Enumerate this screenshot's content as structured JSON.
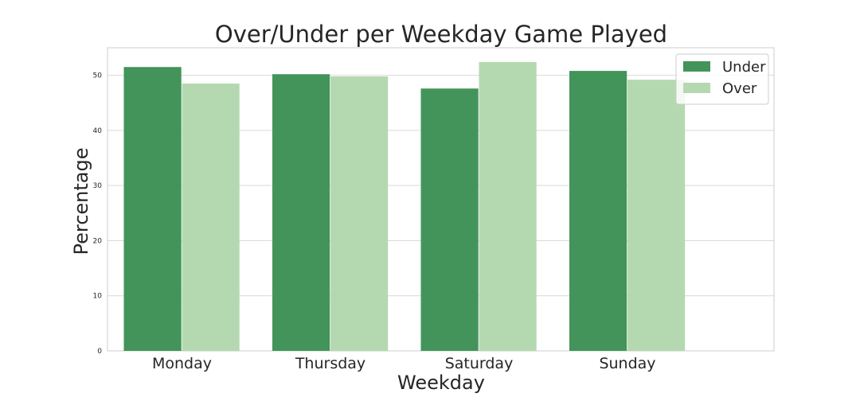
{
  "chart_data": {
    "type": "bar",
    "title": "Over/Under per Weekday Game Played",
    "xlabel": "Weekday",
    "ylabel": "Percentage",
    "categories": [
      "Monday",
      "Thursday",
      "Saturday",
      "Sunday"
    ],
    "series": [
      {
        "name": "Under",
        "color": "#43945a",
        "values": [
          51.5,
          50.2,
          47.6,
          50.8
        ]
      },
      {
        "name": "Over",
        "color": "#b4d9b0",
        "values": [
          48.5,
          49.8,
          52.4,
          49.2
        ]
      }
    ],
    "ylim": [
      0,
      55
    ],
    "yticks": [
      0,
      10,
      20,
      30,
      40,
      50
    ],
    "grid": "horizontal",
    "legend_position": "top-right"
  }
}
